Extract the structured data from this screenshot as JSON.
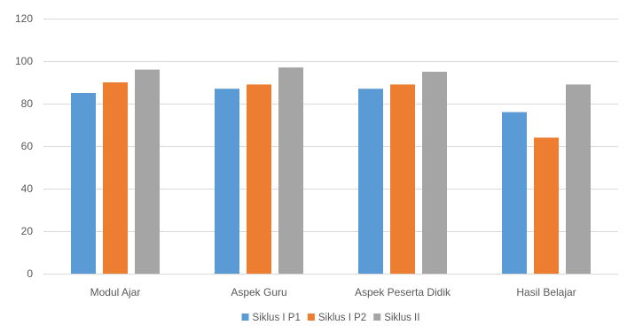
{
  "chart_data": {
    "type": "bar",
    "title": "",
    "xlabel": "",
    "ylabel": "",
    "categories": [
      "Modul Ajar",
      "Aspek Guru",
      "Aspek Peserta Didik",
      "Hasil Belajar"
    ],
    "series": [
      {
        "name": "Siklus I P1",
        "color": "#5B9BD5",
        "values": [
          85,
          87,
          87,
          76
        ]
      },
      {
        "name": "Siklus I P2",
        "color": "#ED7D31",
        "values": [
          90,
          89,
          89,
          64
        ]
      },
      {
        "name": "Siklus II",
        "color": "#A5A5A5",
        "values": [
          96,
          97,
          95,
          89
        ]
      }
    ],
    "ylim": [
      0,
      120
    ],
    "yticks": [
      0,
      20,
      40,
      60,
      80,
      100,
      120
    ],
    "grid": true,
    "legend_position": "bottom",
    "gridline_color": "#D9D9D9",
    "axis_color": "#D9D9D9"
  }
}
